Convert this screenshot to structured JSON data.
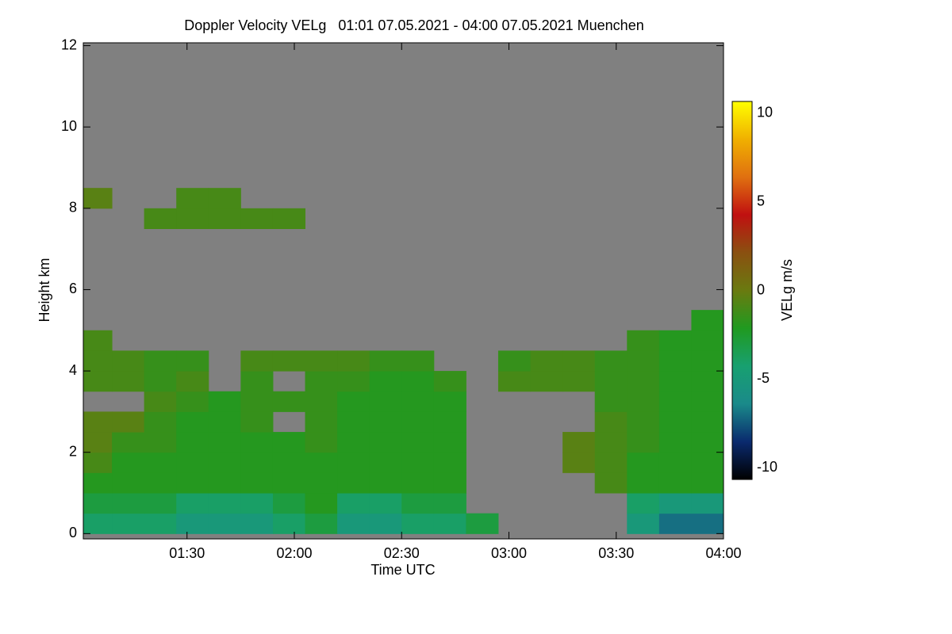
{
  "chart_data": {
    "type": "heatmap",
    "title": "Doppler Velocity VELg   01:01 07.05.2021 - 04:00 07.05.2021 Muenchen",
    "x_label": "Time UTC",
    "y_label": "Height km",
    "colorbar_label": "VELg m/s",
    "xlim": [
      1.0167,
      4.0
    ],
    "xticks": [
      {
        "value": 1.5,
        "label": "01:30"
      },
      {
        "value": 2.0,
        "label": "02:00"
      },
      {
        "value": 2.5,
        "label": "02:30"
      },
      {
        "value": 3.0,
        "label": "03:00"
      },
      {
        "value": 3.5,
        "label": "03:30"
      },
      {
        "value": 4.0,
        "label": "04:00"
      }
    ],
    "ylim": [
      -0.13,
      12.07
    ],
    "yticks": [
      0,
      2,
      4,
      6,
      8,
      10,
      12
    ],
    "clim": [
      -10.67,
      10.67
    ],
    "cticks": [
      -10,
      -5,
      0,
      5,
      10
    ],
    "colormap": [
      "#000000",
      "#0a2a6e",
      "#1a8a8a",
      "#18a070",
      "#209a20",
      "#6a7a10",
      "#8a5010",
      "#c01010",
      "#e07010",
      "#f0b000",
      "#ffff00"
    ],
    "background": "#808080",
    "x_bins": [
      1.0,
      1.15,
      1.3,
      1.45,
      1.6,
      1.75,
      1.9,
      2.05,
      2.2,
      2.35,
      2.5,
      2.65,
      2.8,
      2.95,
      3.1,
      3.25,
      3.4,
      3.55,
      3.7,
      3.85,
      4.0
    ],
    "y_bins": [
      0,
      0.5,
      1,
      1.5,
      2,
      2.5,
      3,
      3.5,
      4,
      4.5,
      5,
      5.5,
      6,
      6.5,
      7,
      7.5,
      8,
      8.5
    ],
    "z": [
      [
        -4,
        -4,
        -4,
        -5,
        -5,
        -5,
        -4,
        -3,
        -5,
        -5,
        -4,
        -4,
        -3,
        null,
        null,
        null,
        null,
        -5,
        -7,
        -7
      ],
      [
        -3,
        -3,
        -3,
        -4,
        -4,
        -4,
        -3,
        -2,
        -4,
        -4,
        -3,
        -3,
        null,
        null,
        null,
        null,
        null,
        -4,
        -5,
        -5
      ],
      [
        -2,
        -2,
        -2,
        -2,
        -2,
        -2,
        -2,
        -2,
        -2,
        -2,
        -2,
        -2,
        null,
        null,
        null,
        null,
        -1,
        -2,
        -2,
        -2
      ],
      [
        -1,
        -2,
        -2,
        -2,
        -2,
        -2,
        -2,
        -2,
        -2,
        -2,
        -2,
        -2,
        null,
        null,
        null,
        -0.5,
        -1,
        -2,
        -2,
        -2
      ],
      [
        -0.5,
        -1.5,
        -1.5,
        -2,
        -2,
        -2,
        -2,
        -1.5,
        -2,
        -2,
        -2,
        -2,
        null,
        null,
        null,
        -0.5,
        -1,
        -1.5,
        -2,
        -2
      ],
      [
        -0.5,
        -0.5,
        -1.5,
        -2,
        -2,
        -1.5,
        null,
        -1.5,
        -2,
        -2,
        -2,
        -2,
        null,
        null,
        null,
        null,
        -1,
        -1.5,
        -2,
        -2
      ],
      [
        null,
        null,
        -1,
        -1.5,
        -2,
        -1.5,
        -1.5,
        -1.5,
        -2,
        -2,
        -2,
        -2,
        null,
        null,
        null,
        null,
        -1.5,
        -1.5,
        -2,
        -2
      ],
      [
        -1,
        -1,
        -1.5,
        -1,
        null,
        -1.5,
        null,
        -1.5,
        -1.5,
        -2,
        -2,
        -1.5,
        null,
        -1,
        -1,
        -1,
        -1.5,
        -1.5,
        -2,
        -2
      ],
      [
        -1,
        -1,
        -1.5,
        -1.5,
        null,
        -1,
        -1,
        -1,
        -1,
        -1.5,
        -1.5,
        null,
        null,
        -1.5,
        -1,
        -1,
        -1.5,
        -1.5,
        -2,
        -2
      ],
      [
        -1,
        null,
        null,
        null,
        null,
        null,
        null,
        null,
        null,
        null,
        null,
        null,
        null,
        null,
        null,
        null,
        null,
        -1.5,
        -2,
        -2
      ],
      [
        null,
        null,
        null,
        null,
        null,
        null,
        null,
        null,
        null,
        null,
        null,
        null,
        null,
        null,
        null,
        null,
        null,
        null,
        null,
        -2
      ],
      [
        null,
        null,
        null,
        null,
        null,
        null,
        null,
        null,
        null,
        null,
        null,
        null,
        null,
        null,
        null,
        null,
        null,
        null,
        null,
        null
      ],
      [
        null,
        null,
        null,
        null,
        null,
        null,
        null,
        null,
        null,
        null,
        null,
        null,
        null,
        null,
        null,
        null,
        null,
        null,
        null,
        null
      ],
      [
        null,
        null,
        null,
        null,
        null,
        null,
        null,
        null,
        null,
        null,
        null,
        null,
        null,
        null,
        null,
        null,
        null,
        null,
        null,
        null
      ],
      [
        null,
        null,
        null,
        null,
        null,
        null,
        null,
        null,
        null,
        null,
        null,
        null,
        null,
        null,
        null,
        null,
        null,
        null,
        null,
        null
      ],
      [
        null,
        null,
        -1,
        -1,
        -1,
        -1,
        -1,
        null,
        null,
        null,
        null,
        null,
        null,
        null,
        null,
        null,
        null,
        null,
        null,
        null
      ],
      [
        -0.5,
        null,
        null,
        -1,
        -1,
        null,
        null,
        null,
        null,
        null,
        null,
        null,
        null,
        null,
        null,
        null,
        null,
        null,
        null,
        null
      ]
    ]
  }
}
